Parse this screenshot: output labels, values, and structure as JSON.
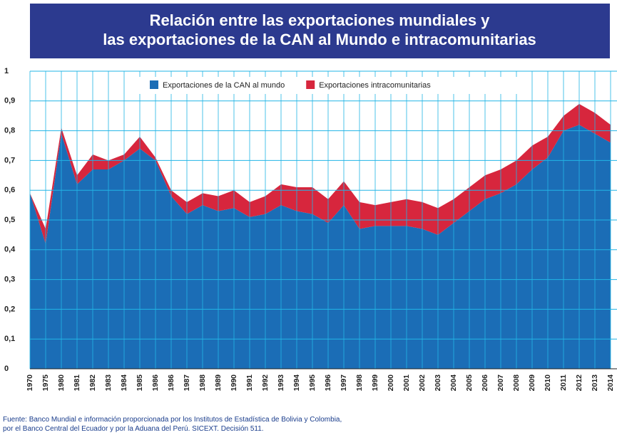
{
  "chart_data": {
    "type": "stacked_area",
    "title": [
      "Relación entre las exportaciones mundiales y",
      "las exportaciones de la CAN al Mundo e intracomunitarias"
    ],
    "source": [
      "Fuente: Banco Mundial e información proporcionada por los Institutos de Estadística de Bolivia y Colombia,",
      "por el Banco Central del Ecuador y por la Aduana del Perú. SICEXT. Decisión 511."
    ],
    "categories": [
      "1970",
      "1975",
      "1980",
      "1981",
      "1982",
      "1983",
      "1984",
      "1985",
      "1986",
      "1986",
      "1987",
      "1988",
      "1989",
      "1990",
      "1991",
      "1992",
      "1993",
      "1994",
      "1995",
      "1996",
      "1997",
      "1998",
      "1999",
      "2000",
      "2001",
      "2002",
      "2003",
      "2004",
      "2005",
      "2006",
      "2007",
      "2008",
      "2009",
      "2010",
      "2011",
      "2012",
      "2013",
      "2014"
    ],
    "series": [
      {
        "name": "Exportaciones de la CAN al mundo",
        "color": "#1b6db6",
        "values": [
          0.59,
          0.42,
          0.79,
          0.62,
          0.67,
          0.67,
          0.7,
          0.74,
          0.7,
          0.58,
          0.52,
          0.55,
          0.53,
          0.54,
          0.51,
          0.52,
          0.55,
          0.53,
          0.52,
          0.49,
          0.55,
          0.47,
          0.48,
          0.48,
          0.48,
          0.47,
          0.45,
          0.49,
          0.53,
          0.57,
          0.59,
          0.62,
          0.67,
          0.71,
          0.8,
          0.82,
          0.79,
          0.76
        ]
      },
      {
        "name": "Exportaciones intracomunitarias",
        "color": "#d7263d",
        "values": [
          0,
          0.05,
          0.02,
          0.03,
          0.05,
          0.03,
          0.02,
          0.04,
          0.01,
          0.02,
          0.04,
          0.04,
          0.05,
          0.06,
          0.05,
          0.06,
          0.07,
          0.08,
          0.09,
          0.08,
          0.08,
          0.09,
          0.07,
          0.08,
          0.09,
          0.09,
          0.09,
          0.08,
          0.08,
          0.08,
          0.08,
          0.08,
          0.08,
          0.07,
          0.05,
          0.07,
          0.07,
          0.06
        ]
      }
    ],
    "ylim": [
      0,
      1
    ],
    "yticks": [
      0,
      {
        "value": 0.1,
        "label": "0,1"
      },
      {
        "value": 0.2,
        "label": "0,2"
      },
      {
        "value": 0.3,
        "label": "0,3"
      },
      {
        "value": 0.4,
        "label": "0,4"
      },
      {
        "value": 0.5,
        "label": "0,5"
      },
      {
        "value": 0.6,
        "label": "0,6"
      },
      {
        "value": 0.7,
        "label": "0,7"
      },
      {
        "value": 0.8,
        "label": "0,8"
      },
      {
        "value": 0.9,
        "label": "0,9"
      },
      1
    ],
    "grid": true,
    "grid_color": "#22b5e6",
    "legend": "top"
  }
}
